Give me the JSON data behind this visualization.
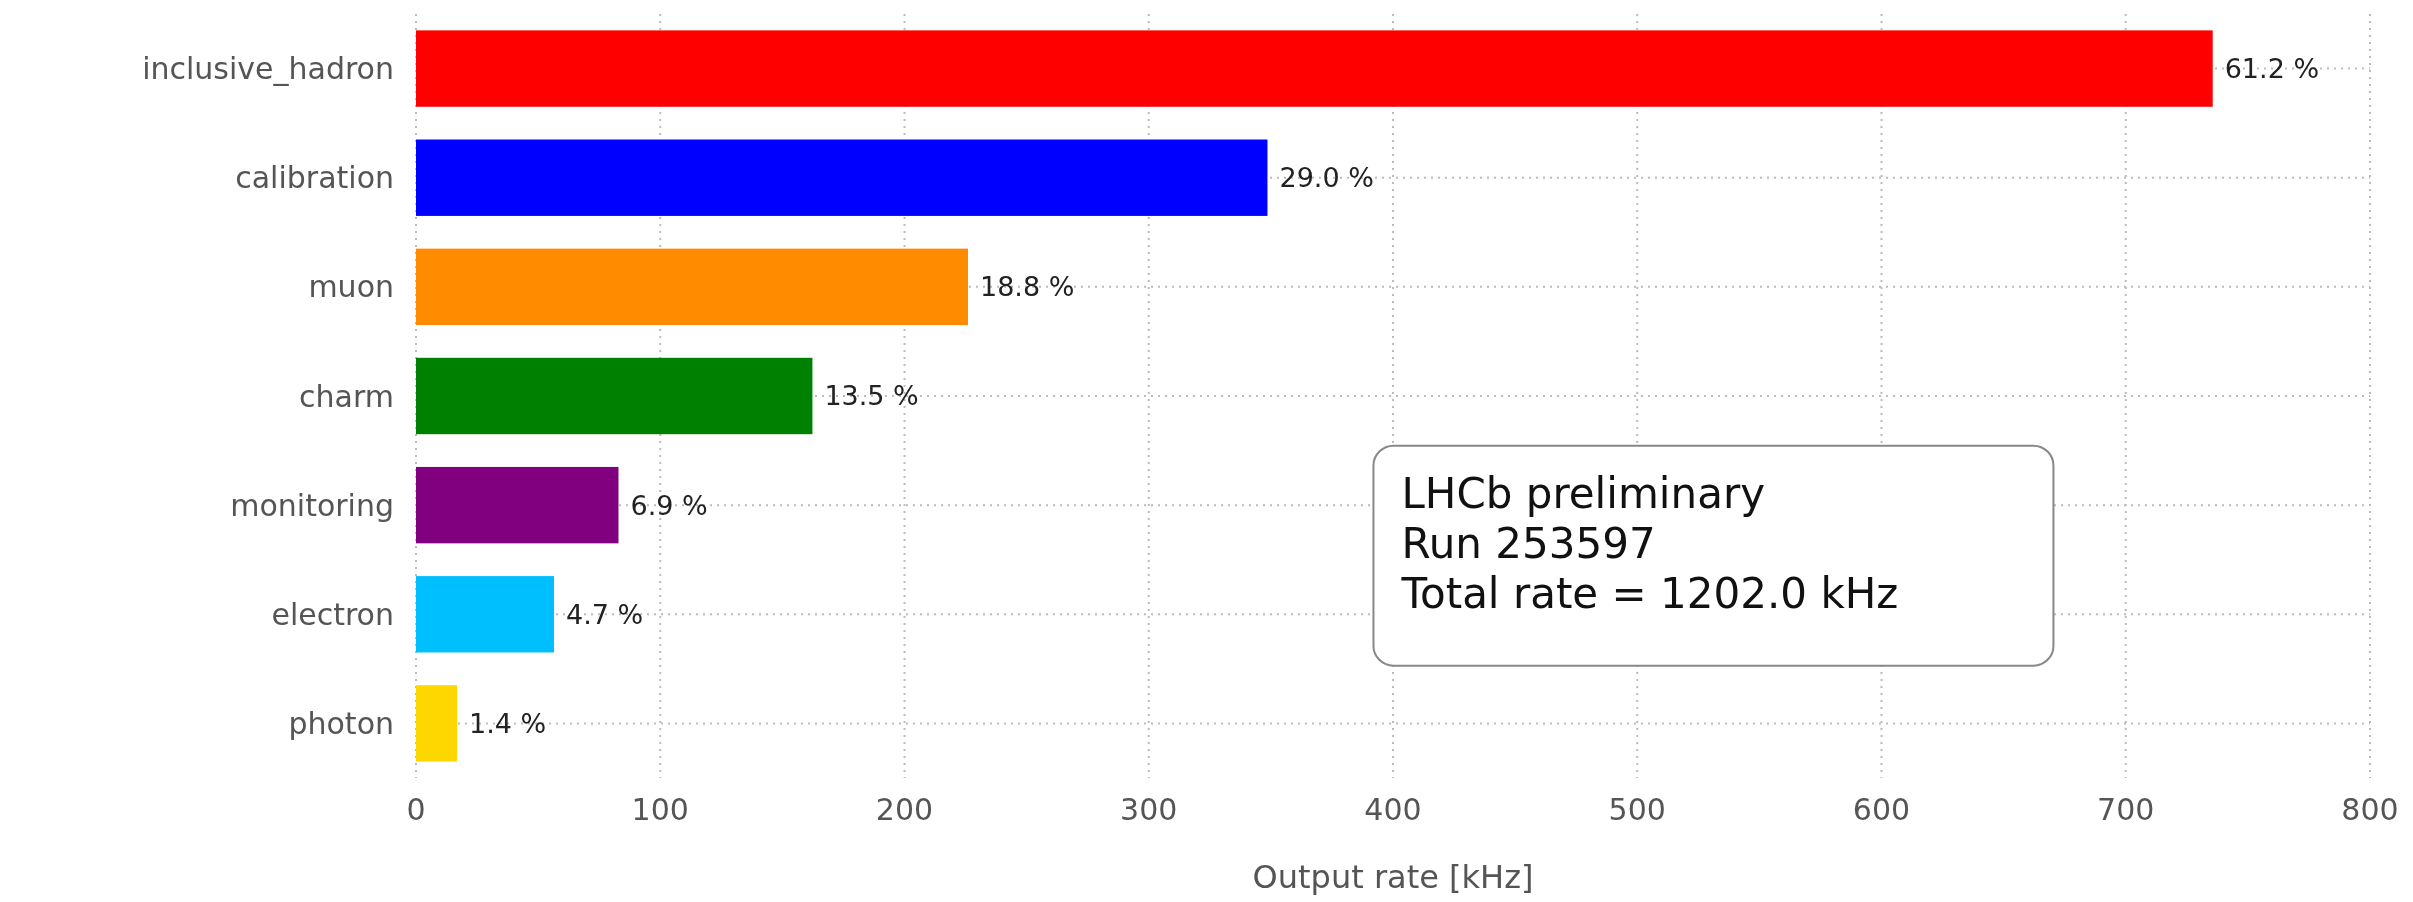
{
  "chart_data": {
    "type": "bar",
    "orientation": "horizontal",
    "categories": [
      "inclusive_hadron",
      "calibration",
      "muon",
      "charm",
      "monitoring",
      "electron",
      "photon"
    ],
    "values": [
      735.6,
      348.6,
      226.0,
      162.3,
      82.9,
      56.5,
      16.8
    ],
    "colors": [
      "#ff0000",
      "#0000ff",
      "#ff8c00",
      "#008000",
      "#800080",
      "#00bfff",
      "#ffd700"
    ],
    "xlim": [
      0,
      800
    ],
    "xticks": [
      0,
      100,
      200,
      300,
      400,
      500,
      600,
      700,
      800
    ],
    "xlabel": "Output rate [kHz]",
    "grid": true,
    "annotations": [
      "LHCb preliminary\nRun 253597\nTotal rate = 1202.0 kHz",
      {
        "text": "61.2 %",
        "x": 735.6,
        "y": "inclusive_hadron"
      },
      {
        "text": "29.0 %",
        "x": 348.6,
        "y": "calibration"
      },
      {
        "text": "18.8 %",
        "x": 226.0,
        "y": "muon"
      },
      {
        "text": "13.5 %",
        "x": 162.3,
        "y": "charm"
      },
      {
        "text": "6.9 %",
        "x": 82.9,
        "y": "monitoring"
      },
      {
        "text": "4.7 %",
        "x": 56.5,
        "y": "electron"
      },
      {
        "text": "1.4 %",
        "x": 16.8,
        "y": "photon"
      }
    ]
  }
}
